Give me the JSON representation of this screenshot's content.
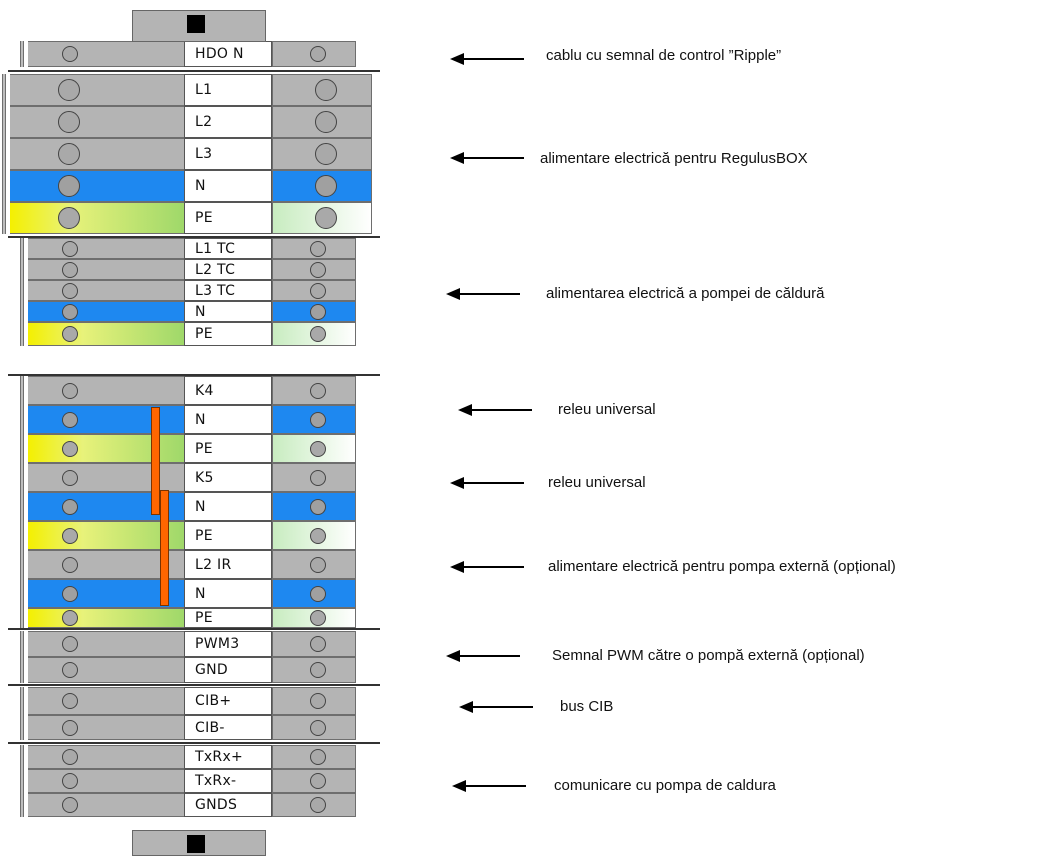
{
  "terminals": [
    {
      "label": "HDO N",
      "type": "normal"
    },
    {
      "label": "L1",
      "type": "normal"
    },
    {
      "label": "L2",
      "type": "normal"
    },
    {
      "label": "L3",
      "type": "normal"
    },
    {
      "label": "N",
      "type": "neutral"
    },
    {
      "label": "PE",
      "type": "pe"
    },
    {
      "label": "L1 TC",
      "type": "normal"
    },
    {
      "label": "L2 TC",
      "type": "normal"
    },
    {
      "label": "L3 TC",
      "type": "normal"
    },
    {
      "label": "N",
      "type": "neutral"
    },
    {
      "label": "PE",
      "type": "pe"
    },
    {
      "label": "K4",
      "type": "normal"
    },
    {
      "label": "N",
      "type": "neutral"
    },
    {
      "label": "PE",
      "type": "pe"
    },
    {
      "label": "K5",
      "type": "normal"
    },
    {
      "label": "N",
      "type": "neutral"
    },
    {
      "label": "PE",
      "type": "pe"
    },
    {
      "label": "L2 IR",
      "type": "normal"
    },
    {
      "label": "N",
      "type": "neutral"
    },
    {
      "label": "PE",
      "type": "pe"
    },
    {
      "label": "PWM3",
      "type": "normal"
    },
    {
      "label": "GND",
      "type": "normal"
    },
    {
      "label": "CIB+",
      "type": "normal"
    },
    {
      "label": "CIB-",
      "type": "normal"
    },
    {
      "label": "TxRx+",
      "type": "normal"
    },
    {
      "label": "TxRx-",
      "type": "normal"
    },
    {
      "label": "GNDS",
      "type": "normal"
    }
  ],
  "annotations": [
    {
      "text": "cablu cu semnal de control ”Ripple”"
    },
    {
      "text": "alimentare electrică pentru RegulusBOX"
    },
    {
      "text": "alimentarea electrică a pompei de căldură"
    },
    {
      "text": "releu universal"
    },
    {
      "text": "releu universal"
    },
    {
      "text": "alimentare electrică pentru pompa externă (opțional)"
    },
    {
      "text": "Semnal PWM către o pompă externă (opțional)"
    },
    {
      "text": "bus CIB"
    },
    {
      "text": "comunicare cu pompa de caldura"
    }
  ],
  "colors": {
    "terminal_grey": "#b4b4b4",
    "neutral_blue": "#1e88f0",
    "pe_yellow": "#f4f000",
    "pe_green": "#9fd86a",
    "jumper_orange": "#ff6600"
  }
}
